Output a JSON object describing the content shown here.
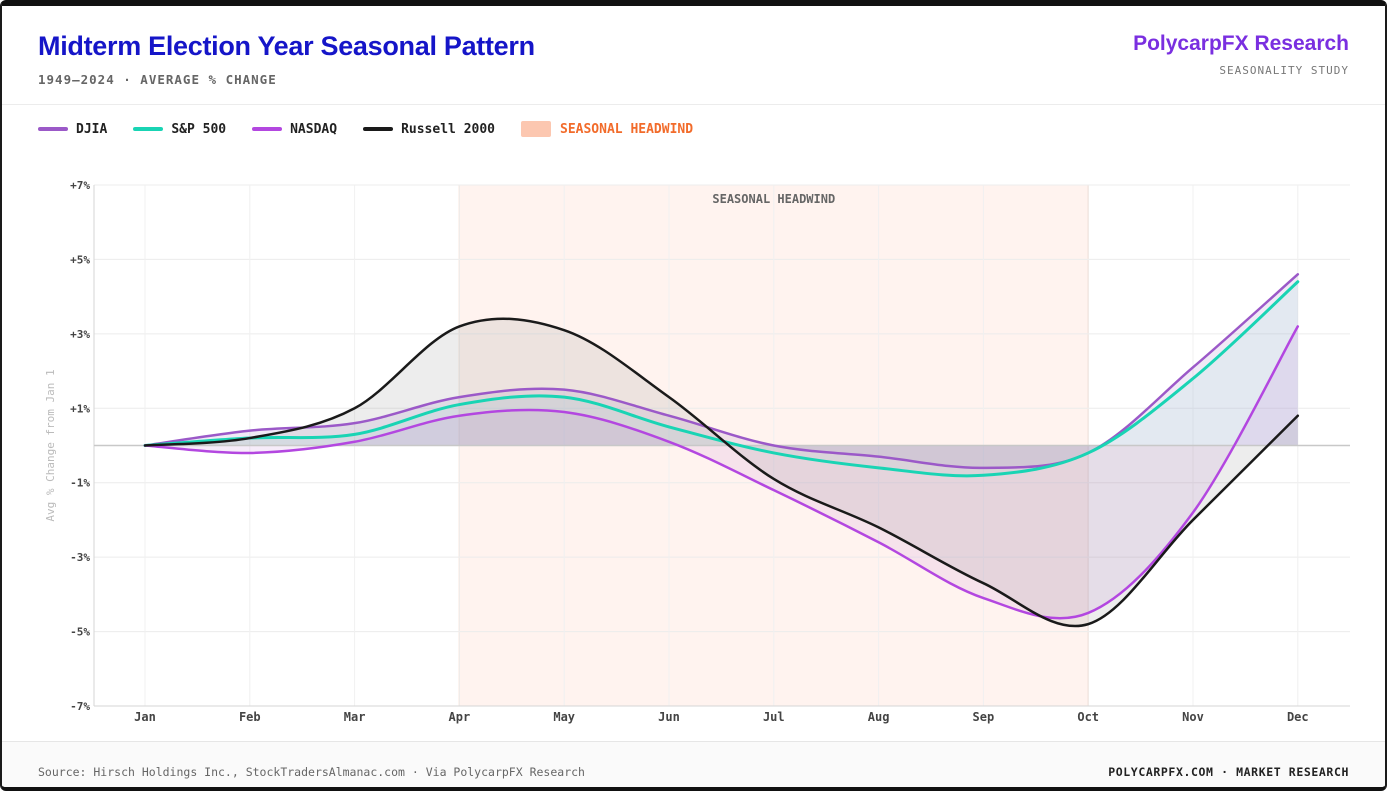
{
  "header": {
    "title": "Midterm Election Year Seasonal Pattern",
    "subtitle": "1949–2024 · AVERAGE % CHANGE",
    "brand": "PolycarpFX Research",
    "brand_sub": "SEASONALITY STUDY"
  },
  "legend": [
    {
      "label": "DJIA",
      "color": "#9b59c8",
      "kind": "line"
    },
    {
      "label": "S&P 500",
      "color": "#19d4b4",
      "kind": "line"
    },
    {
      "label": "NASDAQ",
      "color": "#b347e0",
      "kind": "line"
    },
    {
      "label": "Russell 2000",
      "color": "#1a1a1a",
      "kind": "line"
    },
    {
      "label": "SEASONAL HEADWIND",
      "color": "#f26b2a",
      "kind": "band",
      "fill": "#fcc7b0"
    }
  ],
  "chart_data": {
    "type": "line",
    "title": "Midterm Election Year Seasonal Pattern",
    "xlabel": "",
    "ylabel": "Avg % Change from Jan 1",
    "categories": [
      "Jan",
      "Feb",
      "Mar",
      "Apr",
      "May",
      "Jun",
      "Jul",
      "Aug",
      "Sep",
      "Oct",
      "Nov",
      "Dec"
    ],
    "ylim": [
      -7,
      7
    ],
    "yticks": [
      7,
      5,
      3,
      1,
      -1,
      -3,
      -5,
      -7
    ],
    "ytick_labels": [
      "+7%",
      "+5%",
      "+3%",
      "+1%",
      "-1%",
      "-3%",
      "-5%",
      "-7%"
    ],
    "grid": true,
    "headwind": {
      "label": "SEASONAL HEADWIND",
      "start_index": 3,
      "end_index": 9
    },
    "series": [
      {
        "name": "DJIA",
        "color": "#9b59c8",
        "fill": "#a07ec8",
        "values": [
          0.0,
          0.4,
          0.6,
          1.3,
          1.5,
          0.8,
          0.0,
          -0.3,
          -0.6,
          -0.2,
          2.1,
          4.6
        ]
      },
      {
        "name": "S&P 500",
        "color": "#19d4b4",
        "fill": "#9fe4dc",
        "values": [
          0.0,
          0.2,
          0.3,
          1.1,
          1.3,
          0.5,
          -0.2,
          -0.6,
          -0.8,
          -0.2,
          1.8,
          4.4
        ]
      },
      {
        "name": "NASDAQ",
        "color": "#b347e0",
        "fill": "#c88ad8",
        "values": [
          0.0,
          -0.2,
          0.1,
          0.8,
          0.9,
          0.1,
          -1.2,
          -2.6,
          -4.1,
          -4.5,
          -1.8,
          3.2
        ]
      },
      {
        "name": "Russell 2000",
        "color": "#1a1a1a",
        "fill": "#8f8f8f",
        "values": [
          0.0,
          0.2,
          1.0,
          3.2,
          3.1,
          1.3,
          -0.9,
          -2.2,
          -3.7,
          -4.8,
          -2.0,
          0.8
        ]
      }
    ]
  },
  "footer": {
    "source": "Source: Hirsch Holdings Inc., StockTradersAlmanac.com · Via PolycarpFX Research",
    "right": "POLYCARPFX.COM · MARKET RESEARCH"
  }
}
